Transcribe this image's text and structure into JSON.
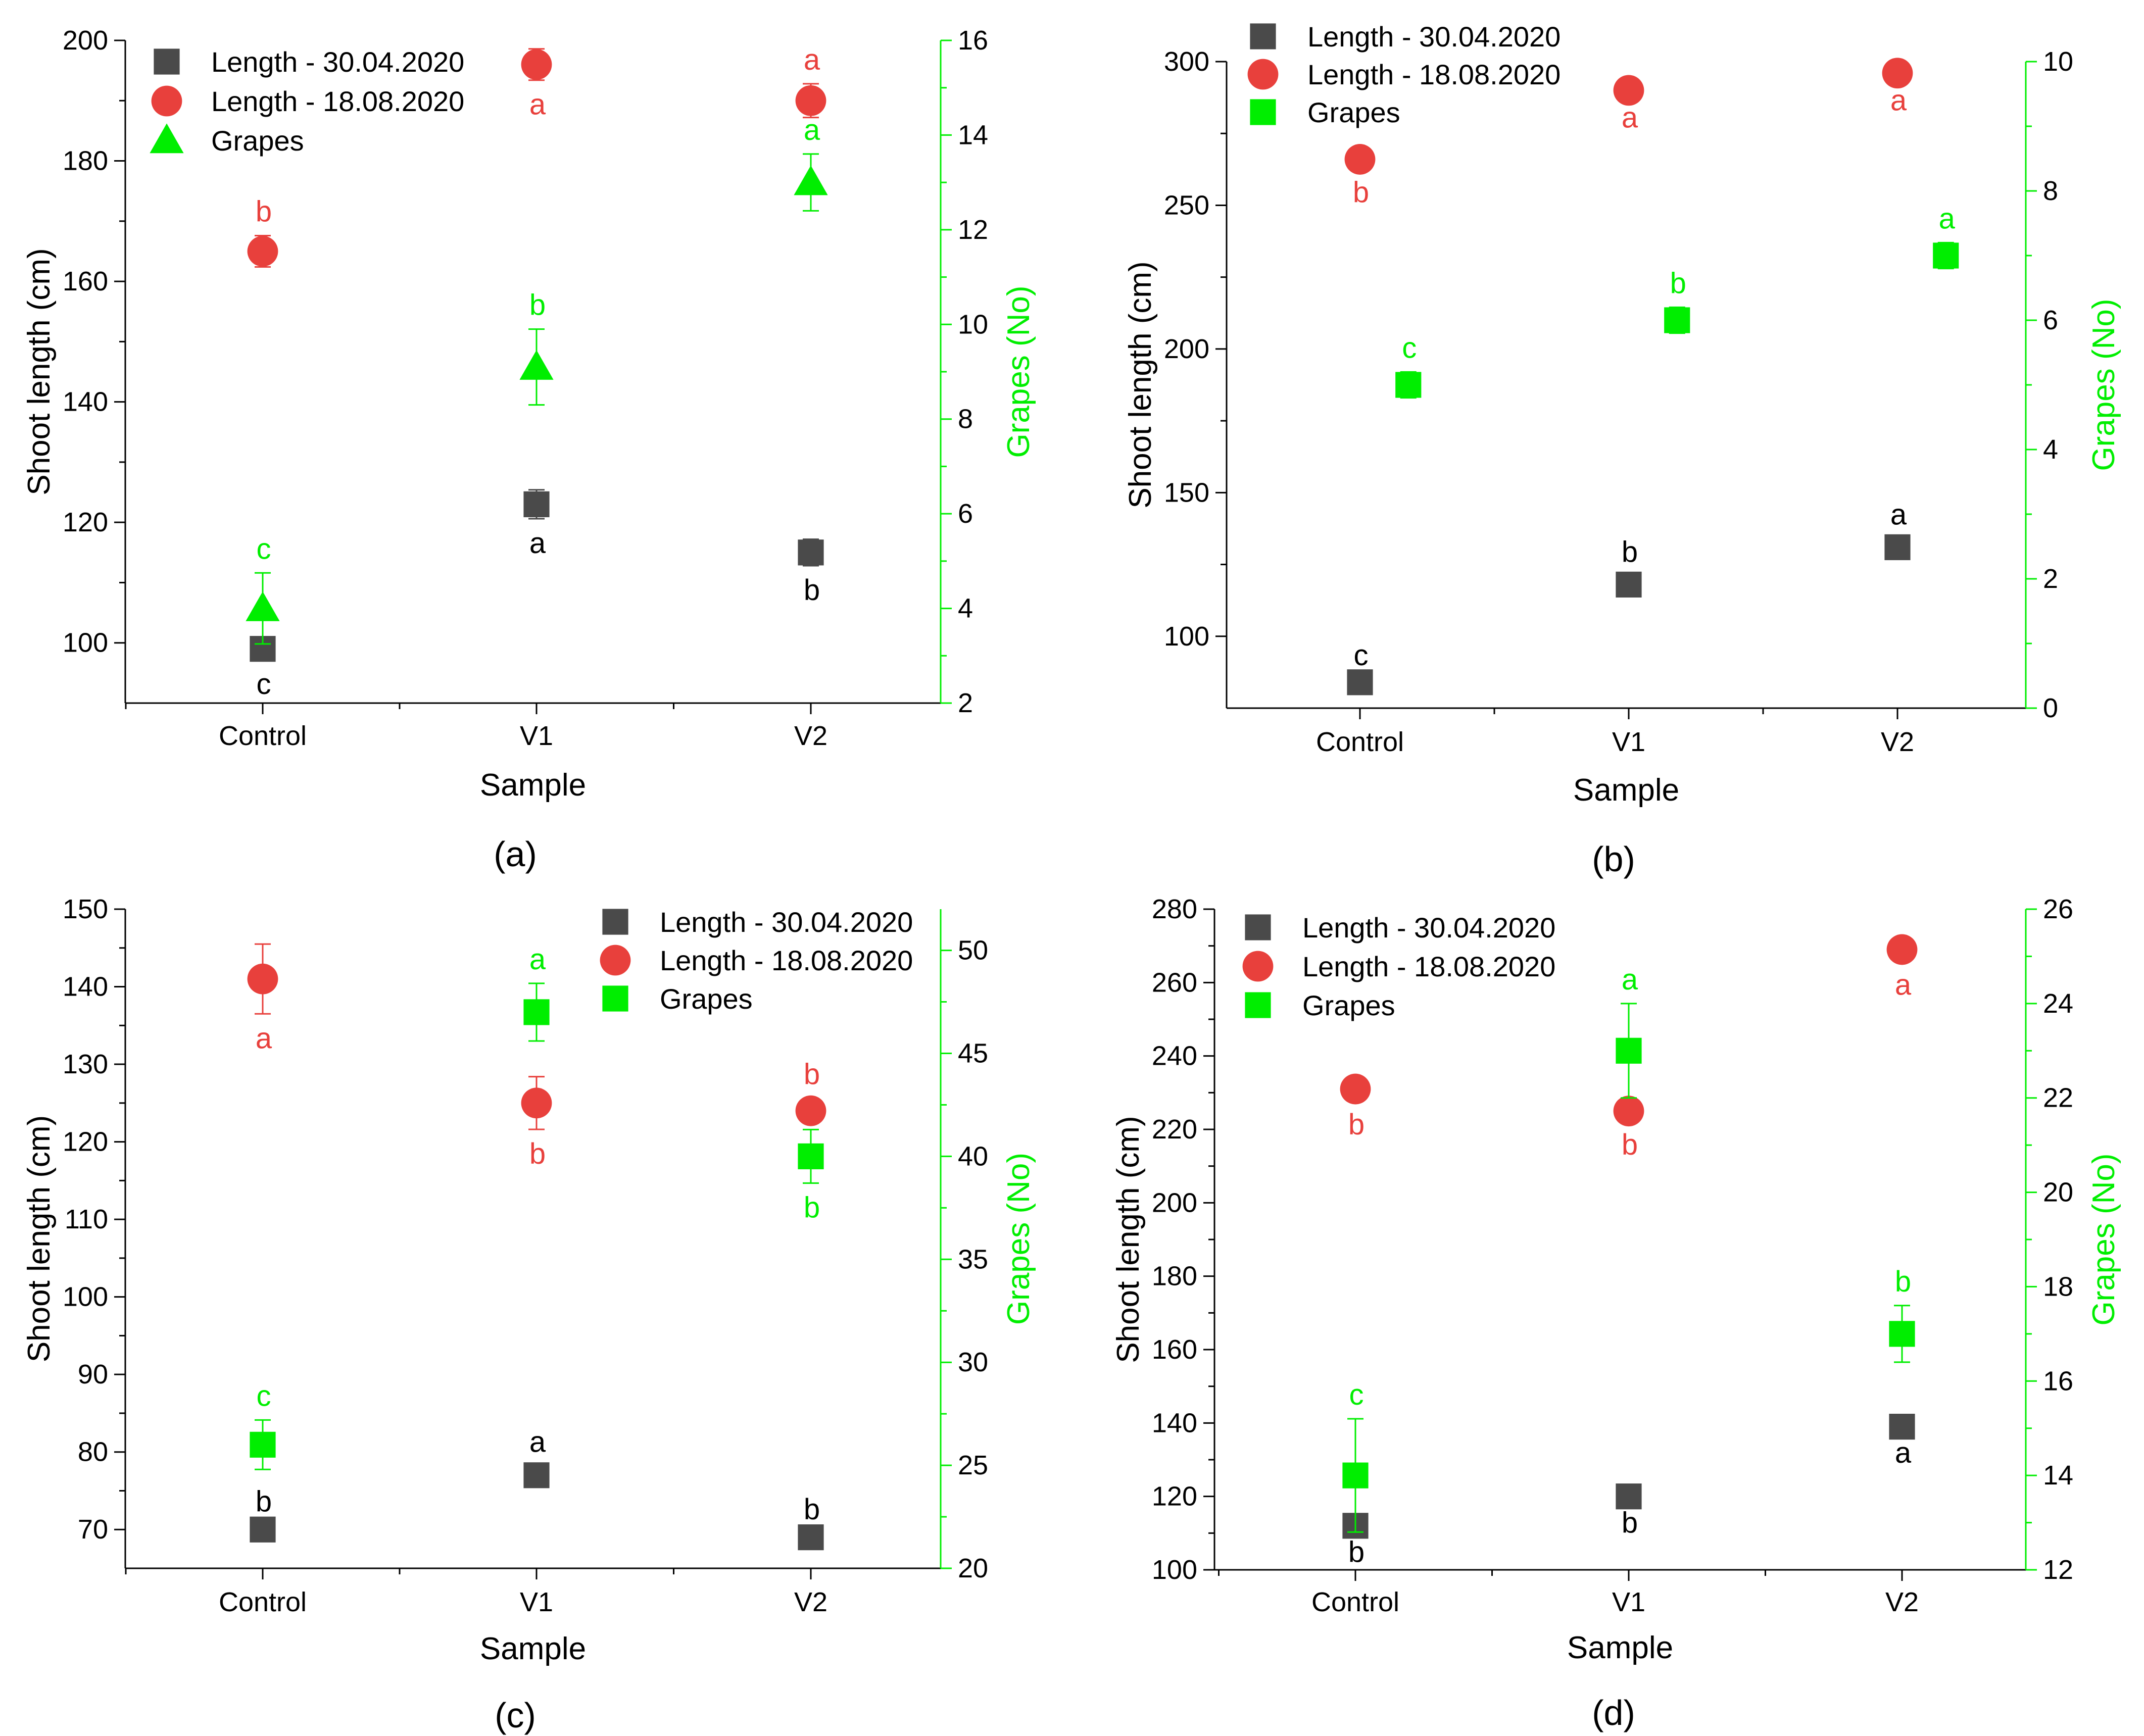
{
  "colors": {
    "length_april": "#4a4a4a",
    "length_august": "#e8403c",
    "grapes": "#00ee00",
    "axis": "#000000"
  },
  "chart_data": [
    {
      "type": "scatter",
      "panel": "a",
      "panel_label": "(a)",
      "xlabel": "Sample",
      "ylabel": "Shoot length (cm)",
      "y2label": "Grapes (No)",
      "categories": [
        "Control",
        "V1",
        "V2"
      ],
      "ylim": [
        90,
        200
      ],
      "yticks": [
        100,
        120,
        140,
        160,
        180,
        200
      ],
      "y2lim": [
        2,
        16
      ],
      "y2ticks": [
        2,
        4,
        6,
        8,
        10,
        12,
        14,
        16
      ],
      "legend_position": "top-left",
      "series": [
        {
          "name": "Length - 30.04.2020",
          "axis": "left",
          "marker": "square",
          "color_key": "length_april",
          "values": [
            99,
            123,
            115
          ],
          "errors": [
            1.8,
            2.4,
            2.2
          ],
          "labels": [
            "c",
            "a",
            "b"
          ],
          "label_pos": [
            "below",
            "below",
            "below"
          ]
        },
        {
          "name": "Length - 18.08.2020",
          "axis": "left",
          "marker": "circle",
          "color_key": "length_august",
          "values": [
            165,
            196,
            190
          ],
          "errors": [
            2.6,
            2.6,
            2.8
          ],
          "labels": [
            "b",
            "a",
            "a"
          ],
          "label_pos": [
            "above",
            "below",
            "above"
          ]
        },
        {
          "name": "Grapes",
          "axis": "right",
          "marker": "triangle",
          "color_key": "grapes",
          "values": [
            4,
            9.1,
            13
          ],
          "errors": [
            0.75,
            0.8,
            0.6
          ],
          "labels": [
            "c",
            "b",
            "a"
          ],
          "label_pos": [
            "above",
            "above",
            "above"
          ]
        }
      ]
    },
    {
      "type": "scatter",
      "panel": "b",
      "panel_label": "(b)",
      "xlabel": "Sample",
      "ylabel": "Shoot length (cm)",
      "y2label": "Grapes (No)",
      "categories": [
        "Control",
        "V1",
        "V2"
      ],
      "ylim": [
        75,
        300
      ],
      "yticks": [
        100,
        150,
        200,
        250,
        300
      ],
      "y2lim": [
        0,
        10
      ],
      "y2ticks": [
        0,
        2,
        4,
        6,
        8,
        10
      ],
      "legend_position": "top-left",
      "series": [
        {
          "name": "Length - 30.04.2020",
          "axis": "left",
          "marker": "square",
          "color_key": "length_april",
          "values": [
            84,
            118,
            131
          ],
          "errors": [
            1,
            3,
            3
          ],
          "labels": [
            "c",
            "b",
            "a"
          ],
          "label_pos": [
            "above",
            "above",
            "above"
          ]
        },
        {
          "name": "Length - 18.08.2020",
          "axis": "left",
          "marker": "circle",
          "color_key": "length_august",
          "values": [
            266,
            290,
            296
          ],
          "errors": [
            3,
            1,
            1
          ],
          "labels": [
            "b",
            "a",
            "a"
          ],
          "label_pos": [
            "below",
            "below",
            "below"
          ]
        },
        {
          "name": "Grapes",
          "axis": "right",
          "marker": "square",
          "color_key": "grapes",
          "x_offset": 0.36,
          "values": [
            5,
            6,
            7
          ],
          "errors": [
            0.2,
            0.2,
            0.2
          ],
          "labels": [
            "c",
            "b",
            "a"
          ],
          "label_pos": [
            "above",
            "above",
            "above"
          ]
        }
      ]
    },
    {
      "type": "scatter",
      "panel": "c",
      "panel_label": "(c)",
      "xlabel": "Sample",
      "ylabel": "Shoot length (cm)",
      "y2label": "Grapes (No)",
      "categories": [
        "Control",
        "V1",
        "V2"
      ],
      "ylim": [
        65,
        150
      ],
      "yticks": [
        70,
        80,
        90,
        100,
        110,
        120,
        130,
        140,
        150
      ],
      "y2lim": [
        20,
        52
      ],
      "y2ticks": [
        20,
        25,
        30,
        35,
        40,
        45,
        50
      ],
      "legend_position": "top-right",
      "series": [
        {
          "name": "Length - 30.04.2020",
          "axis": "left",
          "marker": "square",
          "color_key": "length_april",
          "values": [
            70,
            77,
            69
          ],
          "errors": [
            0.5,
            1.2,
            0.5
          ],
          "labels": [
            "b",
            "a",
            "b"
          ],
          "label_pos": [
            "above",
            "above",
            "above"
          ]
        },
        {
          "name": "Length - 18.08.2020",
          "axis": "left",
          "marker": "circle",
          "color_key": "length_august",
          "values": [
            141,
            125,
            124
          ],
          "errors": [
            4.5,
            3.4,
            1.6
          ],
          "labels": [
            "a",
            "b",
            "b"
          ],
          "label_pos": [
            "below",
            "below",
            "above"
          ]
        },
        {
          "name": "Grapes",
          "axis": "right",
          "marker": "square",
          "color_key": "grapes",
          "values": [
            26,
            47,
            40
          ],
          "errors": [
            1.2,
            1.4,
            1.3
          ],
          "labels": [
            "c",
            "a",
            "b"
          ],
          "label_pos": [
            "above",
            "above",
            "below"
          ]
        }
      ]
    },
    {
      "type": "scatter",
      "panel": "d",
      "panel_label": "(d)",
      "xlabel": "Sample",
      "ylabel": "Shoot length (cm)",
      "y2label": "Grapes (No)",
      "categories": [
        "Control",
        "V1",
        "V2"
      ],
      "ylim": [
        100,
        280
      ],
      "yticks": [
        100,
        120,
        140,
        160,
        180,
        200,
        220,
        240,
        260,
        280
      ],
      "y2lim": [
        12,
        26
      ],
      "y2ticks": [
        12,
        14,
        16,
        18,
        20,
        22,
        24,
        26
      ],
      "legend_position": "top-left",
      "series": [
        {
          "name": "Length - 30.04.2020",
          "axis": "left",
          "marker": "square",
          "color_key": "length_april",
          "values": [
            112,
            120,
            139
          ],
          "errors": [
            0.5,
            0.5,
            0.5
          ],
          "labels": [
            "b",
            "b",
            "a"
          ],
          "label_pos": [
            "below",
            "below",
            "below"
          ]
        },
        {
          "name": "Length - 18.08.2020",
          "axis": "left",
          "marker": "circle",
          "color_key": "length_august",
          "values": [
            231,
            225,
            269
          ],
          "errors": [
            3,
            2.5,
            3
          ],
          "labels": [
            "b",
            "b",
            "a"
          ],
          "label_pos": [
            "below",
            "below",
            "below"
          ]
        },
        {
          "name": "Grapes",
          "axis": "right",
          "marker": "square",
          "color_key": "grapes",
          "values": [
            14,
            23,
            17
          ],
          "errors": [
            1.2,
            1.0,
            0.6
          ],
          "labels": [
            "c",
            "a",
            "b"
          ],
          "label_pos": [
            "above",
            "above",
            "above"
          ]
        }
      ]
    }
  ]
}
